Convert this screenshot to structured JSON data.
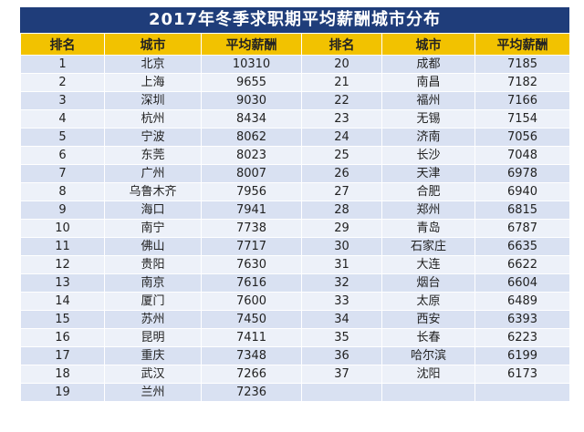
{
  "title": "2017年冬季求职期平均薪酬城市分布",
  "headers": [
    "排名",
    "城市",
    "平均薪酬",
    "排名",
    "城市",
    "平均薪酬"
  ],
  "left": [
    {
      "rank": "1",
      "city": "北京",
      "salary": "10310"
    },
    {
      "rank": "2",
      "city": "上海",
      "salary": "9655"
    },
    {
      "rank": "3",
      "city": "深圳",
      "salary": "9030"
    },
    {
      "rank": "4",
      "city": "杭州",
      "salary": "8434"
    },
    {
      "rank": "5",
      "city": "宁波",
      "salary": "8062"
    },
    {
      "rank": "6",
      "city": "东莞",
      "salary": "8023"
    },
    {
      "rank": "7",
      "city": "广州",
      "salary": "8007"
    },
    {
      "rank": "8",
      "city": "乌鲁木齐",
      "salary": "7956"
    },
    {
      "rank": "9",
      "city": "海口",
      "salary": "7941"
    },
    {
      "rank": "10",
      "city": "南宁",
      "salary": "7738"
    },
    {
      "rank": "11",
      "city": "佛山",
      "salary": "7717"
    },
    {
      "rank": "12",
      "city": "贵阳",
      "salary": "7630"
    },
    {
      "rank": "13",
      "city": "南京",
      "salary": "7616"
    },
    {
      "rank": "14",
      "city": "厦门",
      "salary": "7600"
    },
    {
      "rank": "15",
      "city": "苏州",
      "salary": "7450"
    },
    {
      "rank": "16",
      "city": "昆明",
      "salary": "7411"
    },
    {
      "rank": "17",
      "city": "重庆",
      "salary": "7348"
    },
    {
      "rank": "18",
      "city": "武汉",
      "salary": "7266"
    },
    {
      "rank": "19",
      "city": "兰州",
      "salary": "7236"
    }
  ],
  "right": [
    {
      "rank": "20",
      "city": "成都",
      "salary": "7185"
    },
    {
      "rank": "21",
      "city": "南昌",
      "salary": "7182"
    },
    {
      "rank": "22",
      "city": "福州",
      "salary": "7166"
    },
    {
      "rank": "23",
      "city": "无锡",
      "salary": "7154"
    },
    {
      "rank": "24",
      "city": "济南",
      "salary": "7056"
    },
    {
      "rank": "25",
      "city": "长沙",
      "salary": "7048"
    },
    {
      "rank": "26",
      "city": "天津",
      "salary": "6978"
    },
    {
      "rank": "27",
      "city": "合肥",
      "salary": "6940"
    },
    {
      "rank": "28",
      "city": "郑州",
      "salary": "6815"
    },
    {
      "rank": "29",
      "city": "青岛",
      "salary": "6787"
    },
    {
      "rank": "30",
      "city": "石家庄",
      "salary": "6635"
    },
    {
      "rank": "31",
      "city": "大连",
      "salary": "6622"
    },
    {
      "rank": "32",
      "city": "烟台",
      "salary": "6604"
    },
    {
      "rank": "33",
      "city": "太原",
      "salary": "6489"
    },
    {
      "rank": "34",
      "city": "西安",
      "salary": "6393"
    },
    {
      "rank": "35",
      "city": "长春",
      "salary": "6223"
    },
    {
      "rank": "36",
      "city": "哈尔滨",
      "salary": "6199"
    },
    {
      "rank": "37",
      "city": "沈阳",
      "salary": "6173"
    }
  ],
  "colors": {
    "title_bg": "#1f3d7a",
    "header_bg": "#f2c200",
    "row_a": "#d9e1f2",
    "row_b": "#edf1f9"
  }
}
